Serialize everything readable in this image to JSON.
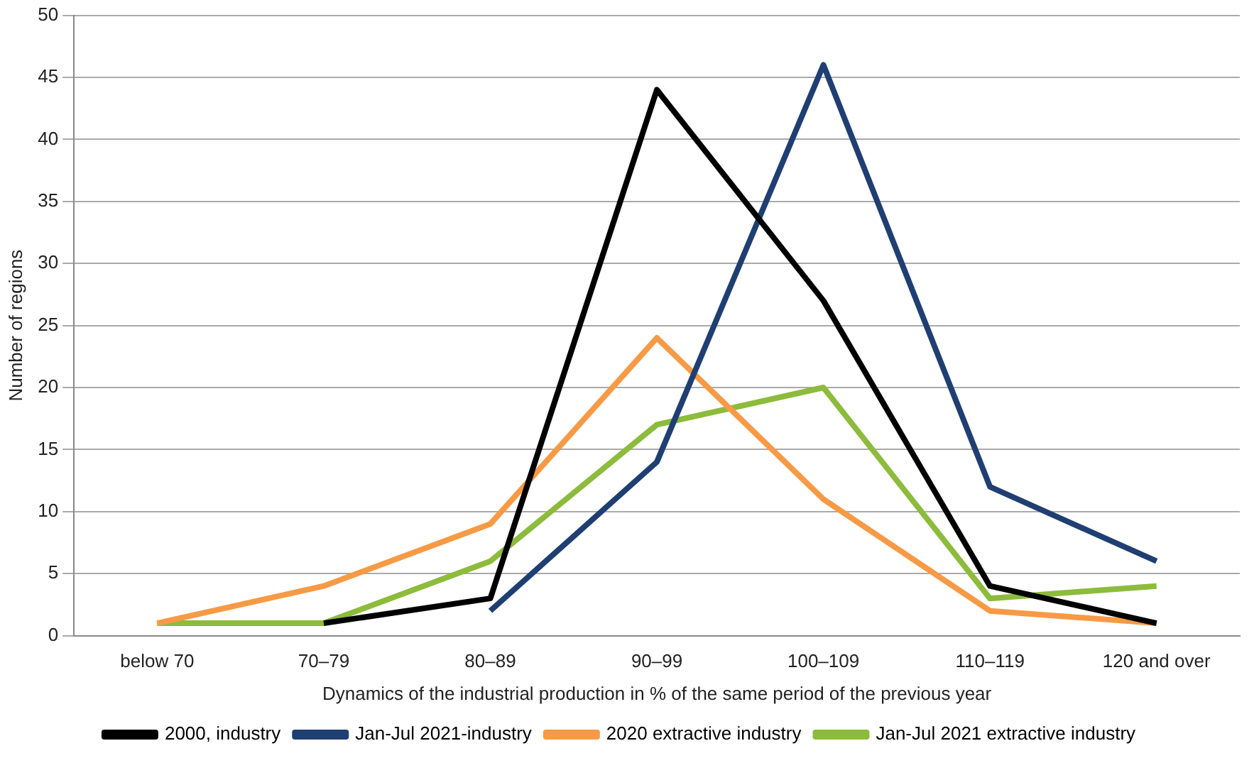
{
  "chart_data": {
    "type": "line",
    "xlabel": "Dynamics of the industrial production in % of the same period of the previous year",
    "ylabel": "Number of regions",
    "categories": [
      "below 70",
      "70–79",
      "80–89",
      "90–99",
      "100–109",
      "110–119",
      "120 and over"
    ],
    "series": [
      {
        "name": "2000, industry",
        "color": "#000000",
        "values": [
          null,
          1,
          3,
          44,
          27,
          4,
          1
        ]
      },
      {
        "name": "Jan-Jul 2021-industry",
        "color": "#1f3f73",
        "values": [
          null,
          null,
          2,
          14,
          46,
          12,
          6
        ]
      },
      {
        "name": "2020 extractive industry",
        "color": "#f79a45",
        "values": [
          1,
          4,
          9,
          24,
          11,
          2,
          1
        ]
      },
      {
        "name": "Jan-Jul 2021 extractive industry",
        "color": "#8dbb3c",
        "values": [
          1,
          1,
          6,
          17,
          20,
          3,
          4
        ]
      }
    ],
    "ylim": [
      0,
      50
    ],
    "yticks": [
      0,
      5,
      10,
      15,
      20,
      25,
      30,
      35,
      40,
      45,
      50
    ],
    "grid": "y",
    "legend": "bottom",
    "marker": "none",
    "line_style": "solid"
  }
}
